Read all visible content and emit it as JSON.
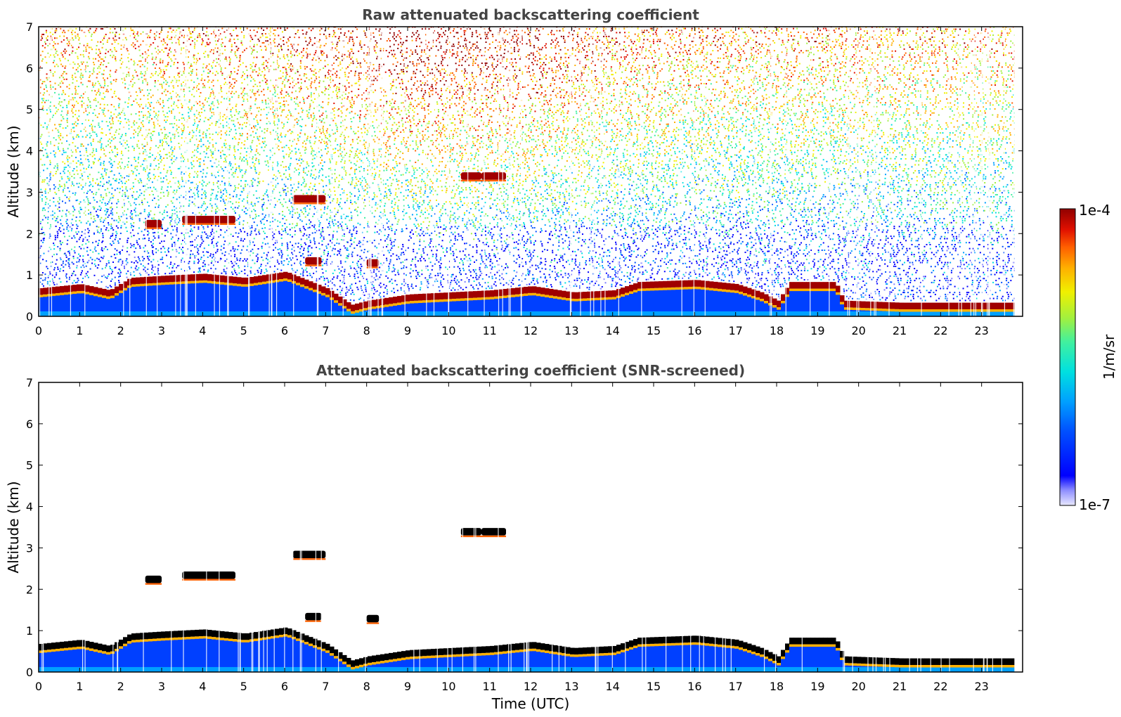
{
  "chart_data": [
    {
      "type": "heatmap",
      "title": "Raw attenuated backscattering coefficient",
      "xlabel": "",
      "ylabel": "Altitude (km)",
      "xlim": [
        0,
        24
      ],
      "ylim": [
        0,
        7
      ],
      "x_ticks": [
        "0",
        "1",
        "2",
        "3",
        "4",
        "5",
        "6",
        "7",
        "8",
        "9",
        "10",
        "11",
        "12",
        "13",
        "14",
        "15",
        "16",
        "17",
        "18",
        "19",
        "20",
        "21",
        "22",
        "23"
      ],
      "y_ticks": [
        "0",
        "1",
        "2",
        "3",
        "4",
        "5",
        "6",
        "7"
      ],
      "screened": false,
      "boundary_layer_top_km": [
        {
          "t": 0,
          "h": 0.6
        },
        {
          "t": 1,
          "h": 0.7
        },
        {
          "t": 1.7,
          "h": 0.55
        },
        {
          "t": 2.2,
          "h": 0.85
        },
        {
          "t": 3,
          "h": 0.9
        },
        {
          "t": 4,
          "h": 0.95
        },
        {
          "t": 5,
          "h": 0.85
        },
        {
          "t": 6,
          "h": 1.0
        },
        {
          "t": 7,
          "h": 0.6
        },
        {
          "t": 7.6,
          "h": 0.2
        },
        {
          "t": 8,
          "h": 0.3
        },
        {
          "t": 9,
          "h": 0.45
        },
        {
          "t": 10,
          "h": 0.5
        },
        {
          "t": 11,
          "h": 0.55
        },
        {
          "t": 12,
          "h": 0.65
        },
        {
          "t": 13,
          "h": 0.5
        },
        {
          "t": 14,
          "h": 0.55
        },
        {
          "t": 14.6,
          "h": 0.75
        },
        {
          "t": 16,
          "h": 0.8
        },
        {
          "t": 17,
          "h": 0.7
        },
        {
          "t": 17.6,
          "h": 0.5
        },
        {
          "t": 18,
          "h": 0.3
        },
        {
          "t": 18.3,
          "h": 0.75
        },
        {
          "t": 19.4,
          "h": 0.75
        },
        {
          "t": 19.6,
          "h": 0.3
        },
        {
          "t": 21,
          "h": 0.25
        },
        {
          "t": 23.8,
          "h": 0.25
        }
      ],
      "cloud_layers": [
        {
          "t0": 2.6,
          "t1": 3.0,
          "alt_km": 2.25
        },
        {
          "t0": 3.5,
          "t1": 4.8,
          "alt_km": 2.35
        },
        {
          "t0": 6.2,
          "t1": 7.0,
          "alt_km": 2.85
        },
        {
          "t0": 10.3,
          "t1": 10.8,
          "alt_km": 3.4
        },
        {
          "t0": 10.8,
          "t1": 11.4,
          "alt_km": 3.4
        },
        {
          "t0": 6.5,
          "t1": 6.9,
          "alt_km": 1.35
        },
        {
          "t0": 8.0,
          "t1": 8.3,
          "alt_km": 1.3
        }
      ]
    },
    {
      "type": "heatmap",
      "title": "Attenuated backscattering coefficient (SNR-screened)",
      "xlabel": "Time (UTC)",
      "ylabel": "Altitude (km)",
      "xlim": [
        0,
        24
      ],
      "ylim": [
        0,
        7
      ],
      "x_ticks": [
        "0",
        "1",
        "2",
        "3",
        "4",
        "5",
        "6",
        "7",
        "8",
        "9",
        "10",
        "11",
        "12",
        "13",
        "14",
        "15",
        "16",
        "17",
        "18",
        "19",
        "20",
        "21",
        "22",
        "23"
      ],
      "y_ticks": [
        "0",
        "1",
        "2",
        "3",
        "4",
        "5",
        "6",
        "7"
      ],
      "screened": true
    }
  ],
  "colorbar": {
    "max_label": "1e-4",
    "min_label": "1e-7",
    "unit_label": "1/m/sr",
    "colormap": [
      "#e8e8ff",
      "#c0c0ff",
      "#8080ff",
      "#0000ff",
      "#0050ff",
      "#00a0ff",
      "#00e0e0",
      "#40f0a0",
      "#a0f040",
      "#f0f000",
      "#ffb000",
      "#ff6000",
      "#e01000",
      "#900000"
    ]
  }
}
